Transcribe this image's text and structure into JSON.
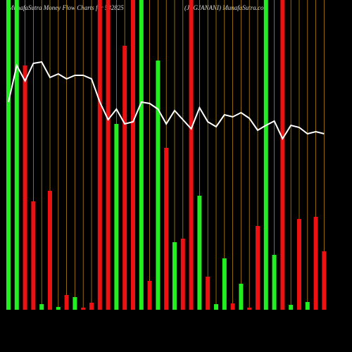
{
  "chart_data": {
    "type": "bar-line",
    "title": "MunafaSutra  Money Flow  Charts for 532825",
    "subtitle": "(JAGJANANI) MunafaSutra.com",
    "ylim": [
      0,
      440
    ],
    "bars": {
      "values": [
        440,
        440,
        347,
        154,
        8,
        169,
        4,
        21,
        18,
        3,
        10,
        440,
        440,
        264,
        375,
        440,
        440,
        41,
        354,
        230,
        96,
        101,
        440,
        162,
        47,
        8,
        73,
        9,
        37,
        3,
        119,
        440,
        78,
        440,
        7,
        129,
        11,
        132,
        83
      ],
      "colors": [
        "#22ee22",
        "#22ee22",
        "#ee1111",
        "#ee1111",
        "#22ee22",
        "#ee1111",
        "#22ee22",
        "#ee1111",
        "#22ee22",
        "#ee1111",
        "#ee1111",
        "#ee1111",
        "#ee1111",
        "#22ee22",
        "#ee1111",
        "#ee1111",
        "#22ee22",
        "#ee1111",
        "#22ee22",
        "#ee1111",
        "#22ee22",
        "#ee1111",
        "#ee1111",
        "#22ee22",
        "#ee1111",
        "#22ee22",
        "#22ee22",
        "#ee1111",
        "#22ee22",
        "#ee1111",
        "#ee1111",
        "#22ee22",
        "#22ee22",
        "#ee1111",
        "#22ee22",
        "#ee1111",
        "#22ee22",
        "#ee1111",
        "#ee1111"
      ]
    },
    "line": {
      "color": "#ffffff",
      "values": [
        295,
        347,
        325,
        350,
        352,
        330,
        335,
        328,
        333,
        333,
        328,
        295,
        270,
        285,
        264,
        267,
        295,
        293,
        285,
        264,
        283,
        270,
        257,
        287,
        267,
        260,
        277,
        274,
        280,
        272,
        255,
        262,
        268,
        243,
        262,
        259,
        250,
        253,
        250
      ]
    },
    "gridline_color": "#b8860b"
  }
}
